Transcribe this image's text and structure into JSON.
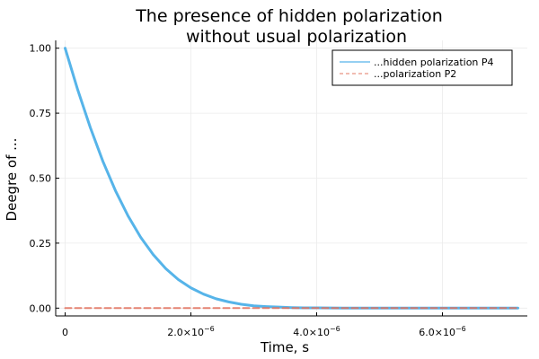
{
  "chart_data": {
    "type": "line",
    "title_lines": [
      "The presence of hidden polarization",
      "without usual polarization"
    ],
    "xlabel": "Time, s",
    "ylabel": "Deegre of ...",
    "xlim": [
      -1.5e-07,
      7.35e-06
    ],
    "ylim": [
      -0.03,
      1.03
    ],
    "grid": true,
    "legend_position": "top-right",
    "x_ticks": [
      {
        "value": 0,
        "label": "0"
      },
      {
        "value": 2e-06,
        "label": "2.0×10",
        "exp": "−6"
      },
      {
        "value": 4e-06,
        "label": "4.0×10",
        "exp": "−6"
      },
      {
        "value": 6e-06,
        "label": "6.0×10",
        "exp": "−6"
      }
    ],
    "y_ticks": [
      {
        "value": 0,
        "label": "0.00"
      },
      {
        "value": 0.25,
        "label": "0.25"
      },
      {
        "value": 0.5,
        "label": "0.50"
      },
      {
        "value": 0.75,
        "label": "0.75"
      },
      {
        "value": 1,
        "label": "1.00"
      }
    ],
    "series": [
      {
        "name": "...hidden polarization P4",
        "color": "#56b4e9",
        "style": "solid",
        "x": [
          0,
          2e-07,
          4e-07,
          6e-07,
          8e-07,
          1e-06,
          1.2e-06,
          1.4e-06,
          1.6e-06,
          1.8e-06,
          2e-06,
          2.2e-06,
          2.4e-06,
          2.6e-06,
          2.8e-06,
          3e-06,
          3.2e-06,
          3.4e-06,
          3.6e-06,
          3.8e-06,
          4e-06,
          4.5e-06,
          5e-06,
          5.5e-06,
          6e-06,
          6.5e-06,
          7e-06,
          7.2e-06
        ],
        "y": [
          1.0,
          0.84,
          0.695,
          0.565,
          0.452,
          0.355,
          0.273,
          0.206,
          0.152,
          0.11,
          0.078,
          0.054,
          0.036,
          0.024,
          0.015,
          0.009,
          0.006,
          0.004,
          0.002,
          0.001,
          0.001,
          0.0,
          0.0,
          0.0,
          0.0,
          0.0,
          0.0,
          0.0
        ]
      },
      {
        "name": "...polarization P2",
        "color": "#e26f5a",
        "style": "dashed",
        "x": [
          0,
          7.2e-06
        ],
        "y": [
          0,
          0
        ]
      }
    ]
  },
  "colors": {
    "frame": "#000000",
    "grid": "#ebebeb",
    "background": "#ffffff"
  }
}
